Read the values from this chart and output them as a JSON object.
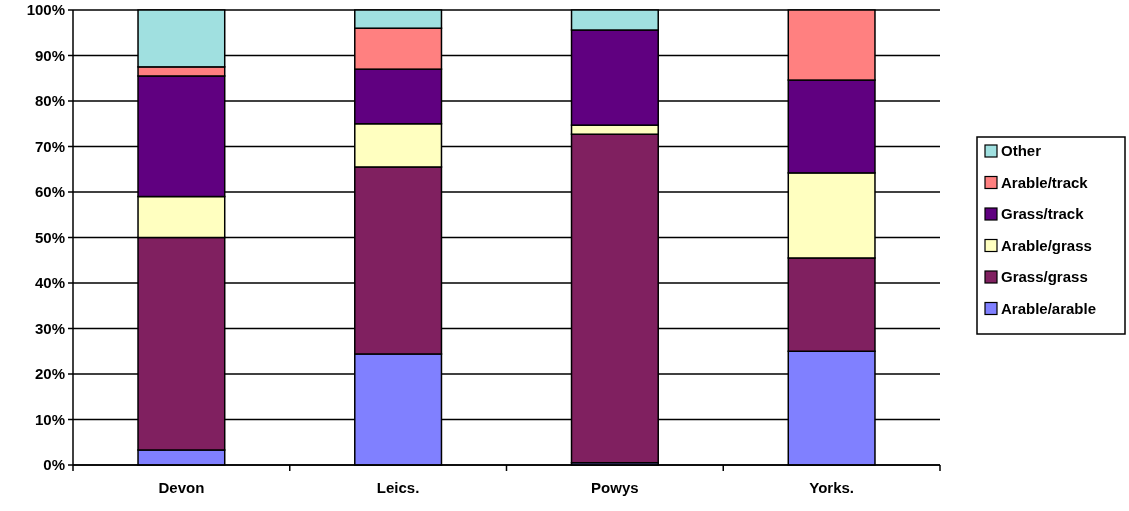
{
  "chart_data": {
    "type": "bar",
    "stacked": true,
    "categories": [
      "Devon",
      "Leics.",
      "Powys",
      "Yorks."
    ],
    "series": [
      {
        "name": "Arable/arable",
        "color": "#8080ff",
        "values": [
          3.3,
          24.4,
          0.5,
          25
        ]
      },
      {
        "name": "Grass/grass",
        "color": "#802060",
        "values": [
          46.7,
          41.1,
          72.2,
          20.5
        ]
      },
      {
        "name": "Arable/grass",
        "color": "#ffffc0",
        "values": [
          9,
          9.5,
          2,
          18.7
        ]
      },
      {
        "name": "Grass/track",
        "color": "#600080",
        "values": [
          26.5,
          12,
          20.9,
          20.4
        ]
      },
      {
        "name": "Arable/track",
        "color": "#ff8080",
        "values": [
          2,
          9,
          0,
          15.4
        ]
      },
      {
        "name": "Other",
        "color": "#a0e0e0",
        "values": [
          12.5,
          4,
          4.4,
          0
        ]
      }
    ],
    "ylim": [
      0,
      100
    ],
    "yticks": [
      {
        "value": 0,
        "label": "0%"
      },
      {
        "value": 10,
        "label": "10%"
      },
      {
        "value": 20,
        "label": "20%"
      },
      {
        "value": 30,
        "label": "30%"
      },
      {
        "value": 40,
        "label": "40%"
      },
      {
        "value": 50,
        "label": "50%"
      },
      {
        "value": 60,
        "label": "60%"
      },
      {
        "value": 70,
        "label": "70%"
      },
      {
        "value": 80,
        "label": "80%"
      },
      {
        "value": 90,
        "label": "90%"
      },
      {
        "value": 100,
        "label": "100%"
      }
    ],
    "grid": "y",
    "legend": "right"
  }
}
